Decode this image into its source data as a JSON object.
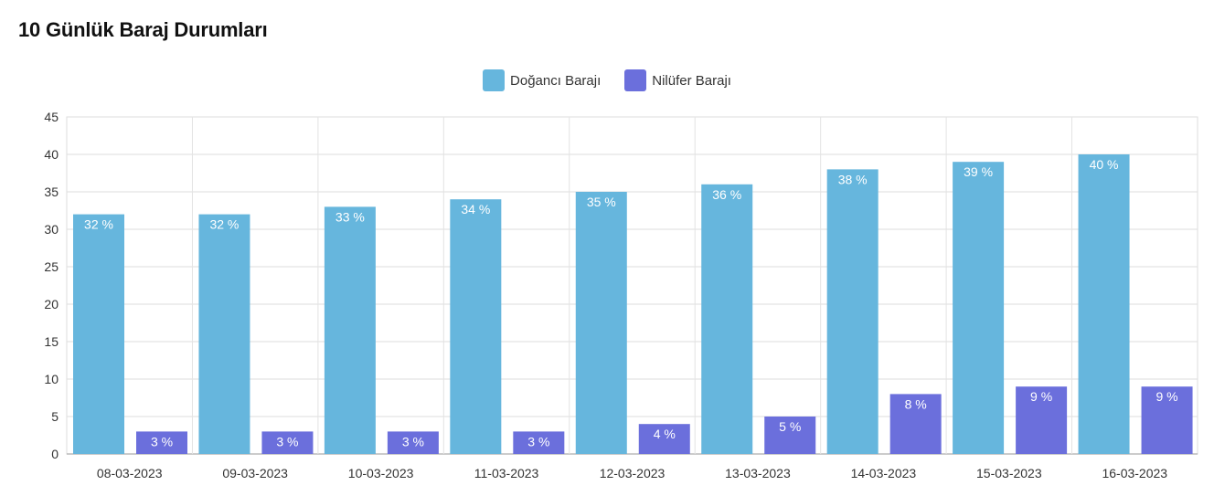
{
  "title": "10 Günlük Baraj Durumları",
  "chart_data": {
    "type": "bar",
    "title": "10 Günlük Baraj Durumları",
    "categories": [
      "08-03-2023",
      "09-03-2023",
      "10-03-2023",
      "11-03-2023",
      "12-03-2023",
      "13-03-2023",
      "14-03-2023",
      "15-03-2023",
      "16-03-2023"
    ],
    "series": [
      {
        "name": "Doğancı Barajı",
        "color": "#66b6dd",
        "values": [
          32,
          32,
          33,
          34,
          35,
          36,
          38,
          39,
          40
        ],
        "labels": [
          "32 %",
          "32 %",
          "33 %",
          "34 %",
          "35 %",
          "36 %",
          "38 %",
          "39 %",
          "40 %"
        ]
      },
      {
        "name": "Nilüfer Barajı",
        "color": "#6b6fdc",
        "values": [
          3,
          3,
          3,
          3,
          4,
          5,
          8,
          9,
          9
        ],
        "labels": [
          "3 %",
          "3 %",
          "3 %",
          "3 %",
          "4 %",
          "5 %",
          "8 %",
          "9 %",
          "9 %"
        ]
      }
    ],
    "ylim": [
      0,
      45
    ],
    "yticks": [
      "0",
      "5",
      "10",
      "15",
      "20",
      "25",
      "30",
      "35",
      "40",
      "45"
    ],
    "xlabel": "",
    "ylabel": "",
    "grid": true,
    "legend_position": "top-center"
  }
}
